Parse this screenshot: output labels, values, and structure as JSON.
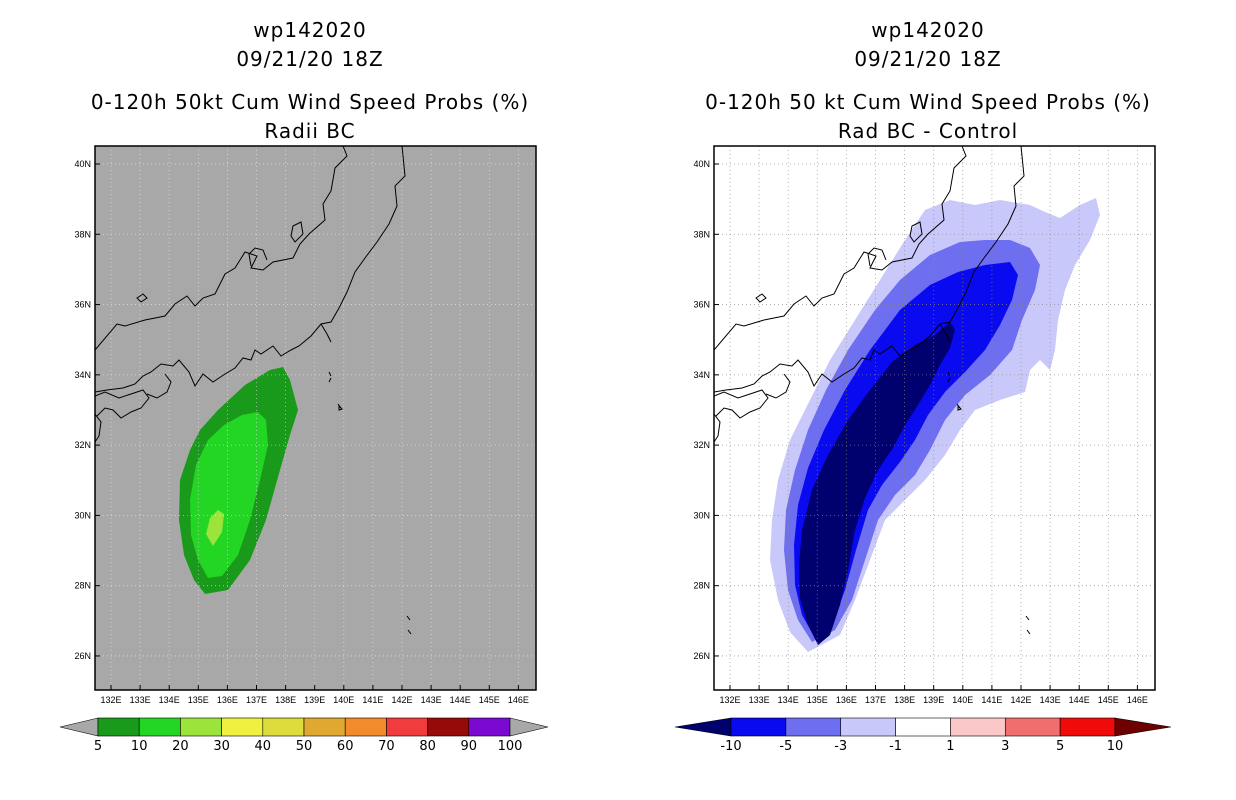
{
  "left": {
    "storm_id": "wp142020",
    "datetime": "09/21/20 18Z",
    "title": "0-120h 50kt Cum Wind Speed Probs (%)",
    "subtitle": "Radii BC",
    "background_color": "#a8a8a8",
    "colorbar": {
      "colors": [
        "#1a9a1a",
        "#24d624",
        "#9be43c",
        "#f0f040",
        "#dcdc3c",
        "#e0a830",
        "#f08c2c",
        "#f03c3c",
        "#960a0a",
        "#7a0ad2"
      ],
      "labels": [
        "5",
        "10",
        "20",
        "30",
        "40",
        "50",
        "60",
        "70",
        "80",
        "90",
        "100"
      ]
    }
  },
  "right": {
    "storm_id": "wp142020",
    "datetime": "09/21/20 18Z",
    "title": "0-120h 50 kt Cum Wind Speed Probs (%)",
    "subtitle": "Rad BC - Control",
    "colorbar": {
      "colors": [
        "#00006e",
        "#0a0af0",
        "#6e6ef0",
        "#c8c8fa",
        "#ffffff",
        "#fac8c8",
        "#f06e6e",
        "#f00a0a",
        "#6e0000"
      ],
      "labels": [
        "-10",
        "-5",
        "-3",
        "-1",
        "1",
        "3",
        "5",
        "10"
      ]
    }
  },
  "axes": {
    "lat_labels": [
      "40N",
      "38N",
      "36N",
      "34N",
      "32N",
      "30N",
      "28N",
      "26N"
    ],
    "lon_labels": [
      "132E",
      "133E",
      "134E",
      "135E",
      "136E",
      "137E",
      "138E",
      "139E",
      "140E",
      "141E",
      "142E",
      "143E",
      "144E",
      "145E",
      "146E"
    ],
    "lat_range": [
      25,
      40.5
    ],
    "lon_range": [
      131.5,
      146.5
    ]
  }
}
